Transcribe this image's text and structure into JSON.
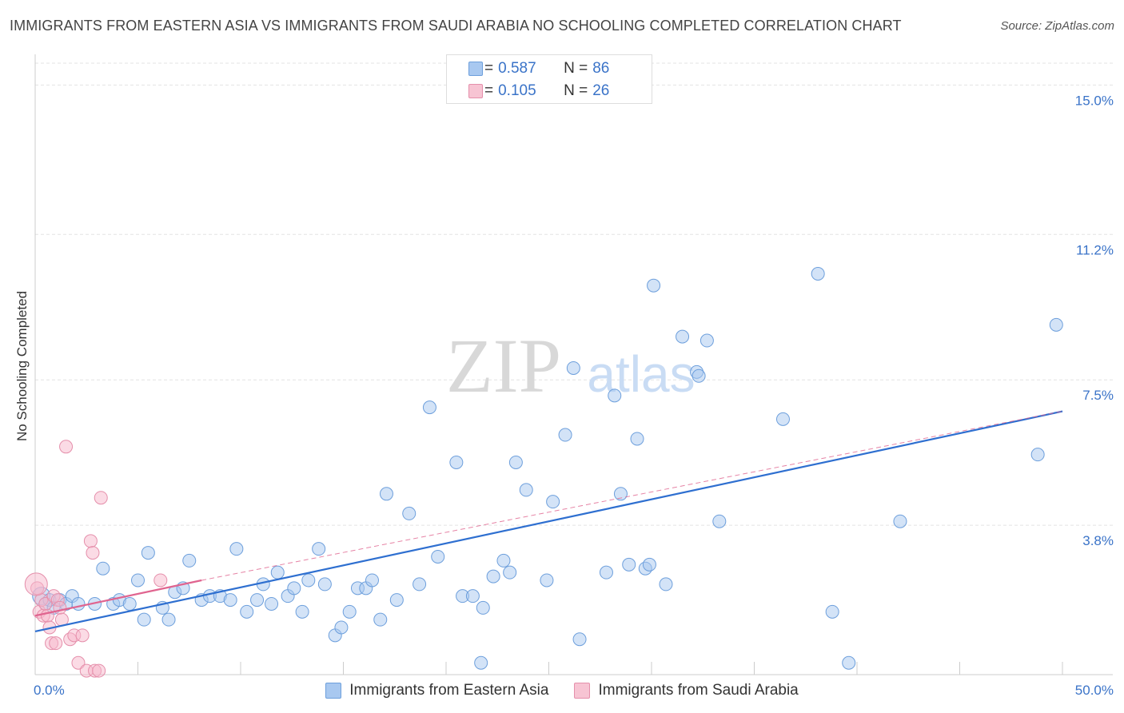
{
  "title": "IMMIGRANTS FROM EASTERN ASIA VS IMMIGRANTS FROM SAUDI ARABIA NO SCHOOLING COMPLETED CORRELATION CHART",
  "source": "Source: ZipAtlas.com",
  "watermark": {
    "zip": "ZIP",
    "atlas": "atlas"
  },
  "legend_top": [
    {
      "r_label": "R =",
      "r_value": "0.587",
      "n_label": "N =",
      "n_value": "86"
    },
    {
      "r_label": "R =",
      "r_value": "0.105",
      "n_label": "N =",
      "n_value": "26"
    }
  ],
  "colors": {
    "blue_fill": "#a8c8f0",
    "blue_stroke": "#6d9fdc",
    "blue_line": "#2e6fd0",
    "pink_fill": "#f7b8cb",
    "pink_stroke": "#e58fab",
    "pink_line": "#e0648f",
    "grid": "#e3e3e3",
    "tick_label": "#3a73c8"
  },
  "chart_data": {
    "type": "scatter",
    "title": "IMMIGRANTS FROM EASTERN ASIA VS IMMIGRANTS FROM SAUDI ARABIA NO SCHOOLING COMPLETED CORRELATION CHART",
    "xlabel": "",
    "ylabel": "No Schooling Completed",
    "xlim": [
      0,
      50
    ],
    "ylim": [
      0,
      15.7
    ],
    "x_tick_labels": [
      "0.0%",
      "50.0%"
    ],
    "y_ticks": [
      3.8,
      7.5,
      11.2,
      15.0
    ],
    "y_tick_labels": [
      "3.8%",
      "7.5%",
      "11.2%",
      "15.0%"
    ],
    "grid": true,
    "series": [
      {
        "name": "Immigrants from Eastern Asia",
        "color": "blue",
        "trend": {
          "x": [
            0,
            50
          ],
          "y": [
            1.1,
            6.7
          ]
        },
        "points": [
          [
            0.3,
            2.0
          ],
          [
            0.5,
            1.8
          ],
          [
            0.7,
            1.9
          ],
          [
            0.9,
            1.7
          ],
          [
            1.2,
            1.9
          ],
          [
            1.5,
            1.8
          ],
          [
            1.8,
            2.0
          ],
          [
            2.1,
            1.8
          ],
          [
            2.9,
            1.8
          ],
          [
            3.3,
            2.7
          ],
          [
            3.8,
            1.8
          ],
          [
            4.1,
            1.9
          ],
          [
            4.6,
            1.8
          ],
          [
            5.0,
            2.4
          ],
          [
            5.3,
            1.4
          ],
          [
            5.5,
            3.1
          ],
          [
            6.2,
            1.7
          ],
          [
            6.5,
            1.4
          ],
          [
            6.8,
            2.1
          ],
          [
            7.2,
            2.2
          ],
          [
            7.5,
            2.9
          ],
          [
            8.1,
            1.9
          ],
          [
            8.5,
            2.0
          ],
          [
            9.0,
            2.0
          ],
          [
            9.5,
            1.9
          ],
          [
            9.8,
            3.2
          ],
          [
            10.3,
            1.6
          ],
          [
            10.8,
            1.9
          ],
          [
            11.1,
            2.3
          ],
          [
            11.5,
            1.8
          ],
          [
            11.8,
            2.6
          ],
          [
            12.3,
            2.0
          ],
          [
            12.6,
            2.2
          ],
          [
            13.0,
            1.6
          ],
          [
            13.3,
            2.4
          ],
          [
            13.8,
            3.2
          ],
          [
            14.1,
            2.3
          ],
          [
            14.6,
            1.0
          ],
          [
            14.9,
            1.2
          ],
          [
            15.3,
            1.6
          ],
          [
            15.7,
            2.2
          ],
          [
            16.1,
            2.2
          ],
          [
            16.4,
            2.4
          ],
          [
            16.8,
            1.4
          ],
          [
            17.1,
            4.6
          ],
          [
            17.6,
            1.9
          ],
          [
            18.2,
            4.1
          ],
          [
            18.7,
            2.3
          ],
          [
            19.2,
            6.8
          ],
          [
            19.6,
            3.0
          ],
          [
            20.5,
            5.4
          ],
          [
            20.8,
            2.0
          ],
          [
            21.3,
            2.0
          ],
          [
            21.7,
            0.3
          ],
          [
            21.8,
            1.7
          ],
          [
            22.3,
            2.5
          ],
          [
            22.8,
            2.9
          ],
          [
            23.1,
            2.6
          ],
          [
            23.4,
            5.4
          ],
          [
            23.9,
            4.7
          ],
          [
            24.9,
            2.4
          ],
          [
            25.2,
            4.4
          ],
          [
            25.8,
            6.1
          ],
          [
            26.2,
            7.8
          ],
          [
            26.5,
            0.9
          ],
          [
            27.8,
            2.6
          ],
          [
            28.2,
            7.1
          ],
          [
            28.5,
            4.6
          ],
          [
            28.9,
            2.8
          ],
          [
            29.3,
            6.0
          ],
          [
            29.7,
            2.7
          ],
          [
            29.9,
            2.8
          ],
          [
            30.1,
            9.9
          ],
          [
            30.7,
            2.3
          ],
          [
            31.5,
            8.6
          ],
          [
            32.2,
            7.7
          ],
          [
            32.3,
            7.6
          ],
          [
            32.7,
            8.5
          ],
          [
            33.3,
            3.9
          ],
          [
            36.4,
            6.5
          ],
          [
            38.1,
            10.2
          ],
          [
            38.8,
            1.6
          ],
          [
            39.6,
            0.3
          ],
          [
            42.1,
            3.9
          ],
          [
            48.8,
            5.6
          ],
          [
            49.7,
            8.9
          ]
        ]
      },
      {
        "name": "Immigrants from Saudi Arabia",
        "color": "pink",
        "trend": {
          "x": [
            0,
            8.1
          ],
          "y": [
            1.5,
            2.4
          ],
          "dashed_extension": {
            "x": [
              8.1,
              50
            ],
            "y": [
              2.4,
              6.7
            ]
          }
        },
        "points": [
          [
            0.1,
            2.2
          ],
          [
            0.2,
            1.6
          ],
          [
            0.3,
            1.9
          ],
          [
            0.4,
            1.5
          ],
          [
            0.5,
            1.8
          ],
          [
            0.6,
            1.5
          ],
          [
            0.7,
            1.2
          ],
          [
            0.8,
            0.8
          ],
          [
            0.9,
            2.0
          ],
          [
            1.0,
            0.8
          ],
          [
            1.1,
            1.9
          ],
          [
            1.2,
            1.7
          ],
          [
            1.3,
            1.4
          ],
          [
            1.5,
            5.8
          ],
          [
            1.7,
            0.9
          ],
          [
            1.9,
            1.0
          ],
          [
            2.1,
            0.3
          ],
          [
            2.3,
            1.0
          ],
          [
            2.5,
            0.1
          ],
          [
            2.7,
            3.4
          ],
          [
            2.8,
            3.1
          ],
          [
            2.9,
            0.1
          ],
          [
            3.1,
            0.1
          ],
          [
            3.2,
            4.5
          ],
          [
            6.1,
            2.4
          ],
          [
            0.05,
            2.3
          ]
        ]
      }
    ]
  },
  "legend_bottom": [
    {
      "label": "Immigrants from Eastern Asia"
    },
    {
      "label": "Immigrants from Saudi Arabia"
    }
  ]
}
